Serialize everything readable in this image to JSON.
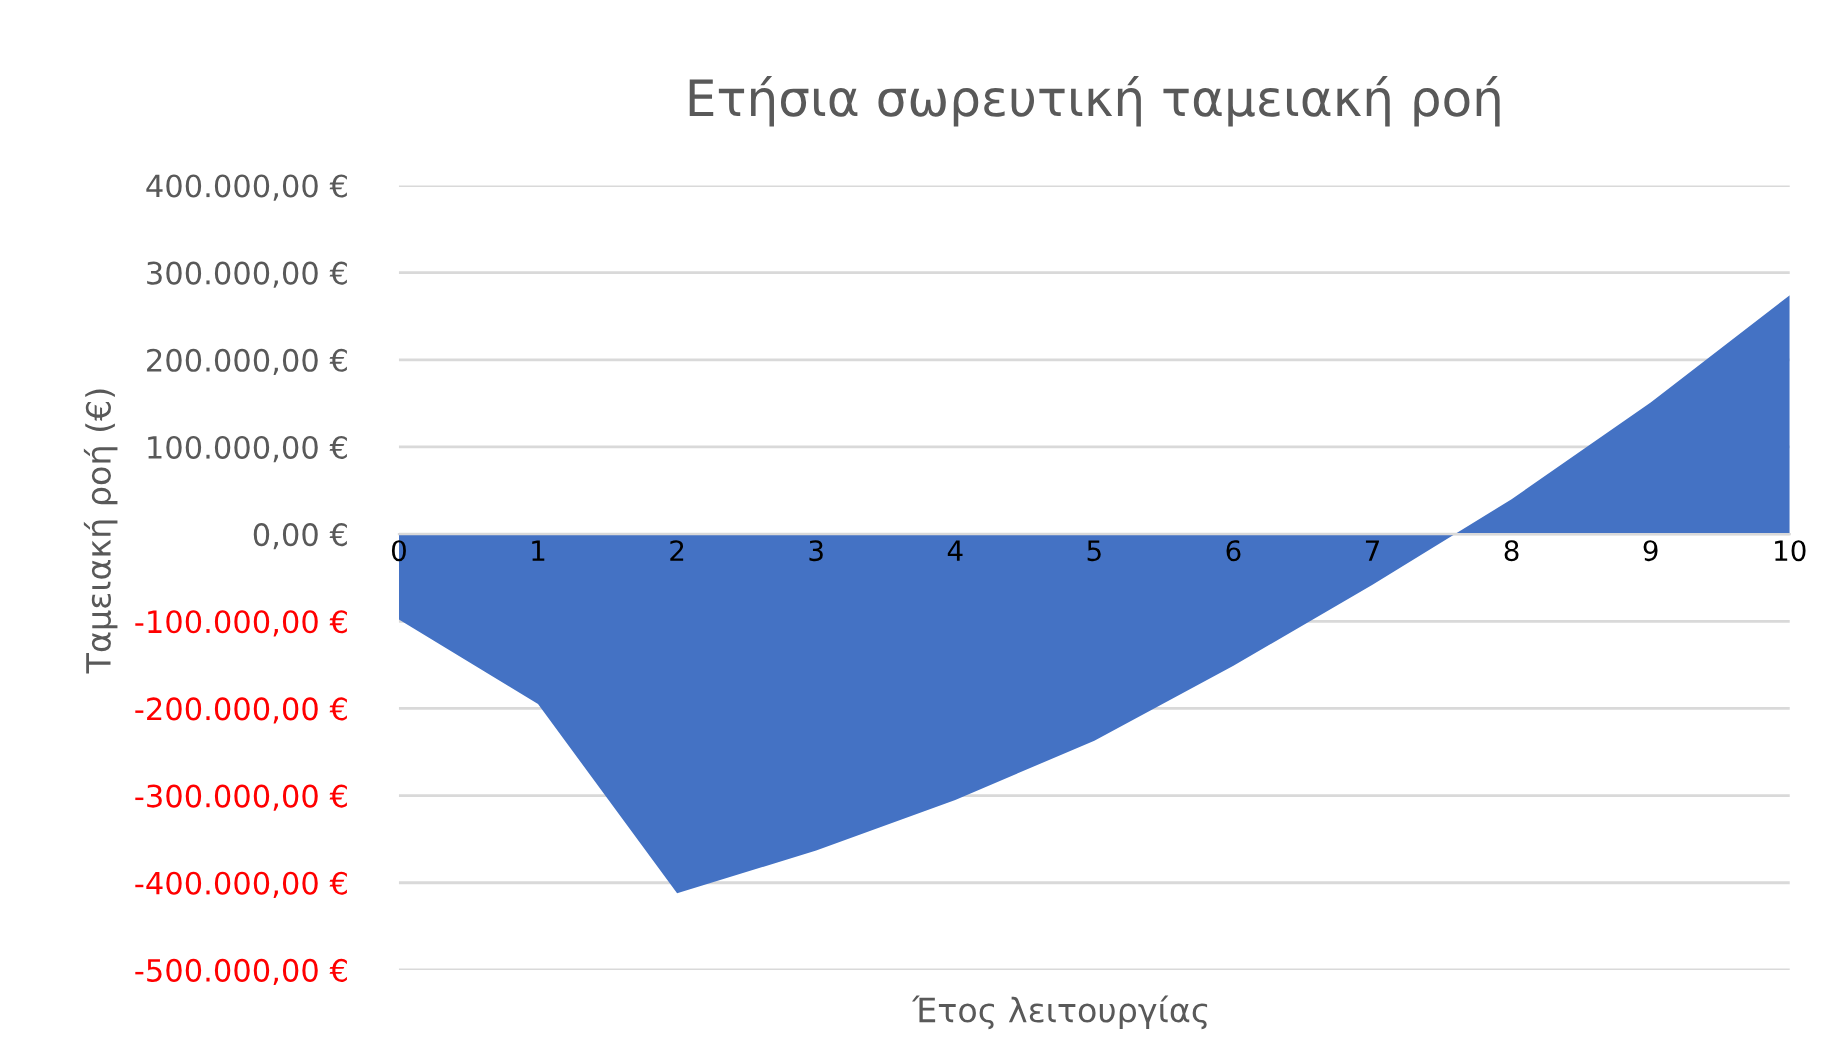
{
  "chart_data": {
    "type": "area",
    "title": "Ετήσια σωρευτική ταμειακή ροή",
    "xlabel": "Έτος λειτουργίας",
    "ylabel": "Ταμειακή ροή (€)",
    "categories": [
      "0",
      "1",
      "2",
      "3",
      "4",
      "5",
      "6",
      "7",
      "8",
      "9",
      "10"
    ],
    "series": [
      {
        "color": "#4472c4",
        "values": [
          -98000,
          -195000,
          -412000,
          -363000,
          -305000,
          -237000,
          -151000,
          -58000,
          40000,
          151000,
          274000
        ]
      }
    ],
    "ylim": [
      -500000,
      400000
    ],
    "yticks": [
      {
        "value": -500000,
        "label": "-500.000,00 €"
      },
      {
        "value": -400000,
        "label": "-400.000,00 €"
      },
      {
        "value": -300000,
        "label": "-300.000,00 €"
      },
      {
        "value": -200000,
        "label": "-200.000,00 €"
      },
      {
        "value": -100000,
        "label": "-100.000,00 €"
      },
      {
        "value": 0,
        "label": "0,00 €"
      },
      {
        "value": 100000,
        "label": "100.000,00 €"
      },
      {
        "value": 200000,
        "label": "200.000,00 €"
      },
      {
        "value": 300000,
        "label": "300.000,00 €"
      },
      {
        "value": 400000,
        "label": "400.000,00 €"
      }
    ],
    "grid": "y",
    "legend": false
  }
}
